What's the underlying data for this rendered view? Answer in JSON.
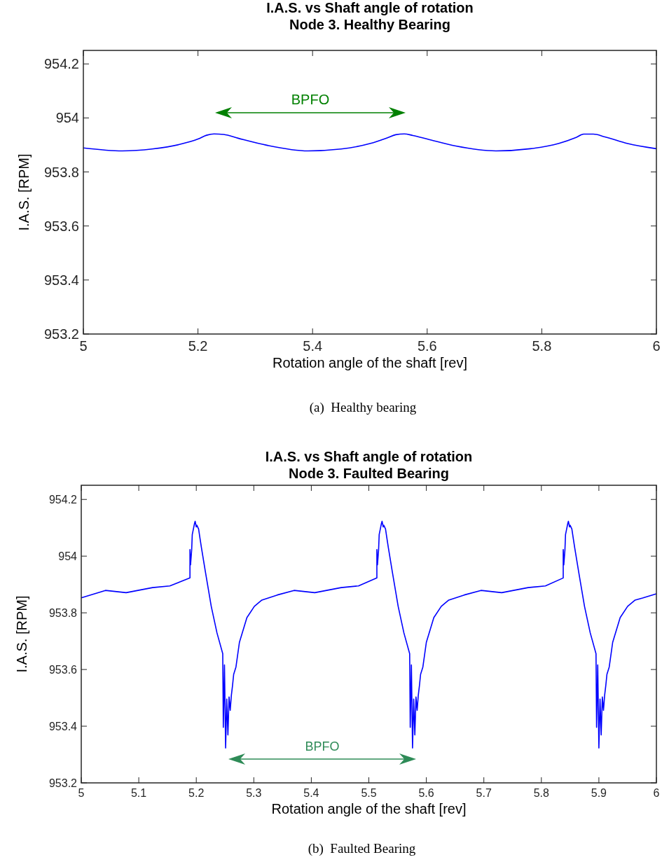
{
  "chart_data": [
    {
      "type": "line",
      "title": "I.A.S. vs Shaft angle of rotation",
      "subtitle": "Node 3. Healthy Bearing",
      "xlabel": "Rotation angle of the shaft [rev]",
      "ylabel": "I.A.S. [RPM]",
      "xlim": [
        5,
        6
      ],
      "xticks": [
        5,
        5.2,
        5.4,
        5.6,
        5.8,
        6
      ],
      "ylim": [
        953.2,
        954.25
      ],
      "yticks": [
        953.2,
        953.4,
        953.6,
        953.8,
        954,
        954.2
      ],
      "series": [
        {
          "color": "#0000ff",
          "x": [
            5,
            5.068,
            5.12,
            5.17,
            5.2,
            5.215,
            5.228,
            5.245,
            5.27,
            5.32,
            5.392,
            5.45,
            5.5,
            5.53,
            5.545,
            5.56,
            5.575,
            5.6,
            5.65,
            5.72,
            5.78,
            5.83,
            5.86,
            5.873,
            5.89,
            5.91,
            5.95,
            6
          ],
          "values": [
            953.889,
            953.878,
            953.885,
            953.903,
            953.922,
            953.936,
            953.941,
            953.939,
            953.925,
            953.899,
            953.878,
            953.885,
            953.905,
            953.926,
            953.938,
            953.941,
            953.935,
            953.922,
            953.896,
            953.878,
            953.886,
            953.906,
            953.928,
            953.94,
            953.94,
            953.93,
            953.905,
            953.886
          ]
        }
      ],
      "annotations": [
        "BPFO",
        "(a)  Healthy bearing"
      ]
    },
    {
      "type": "line",
      "title": "I.A.S. vs Shaft angle of rotation",
      "subtitle": "Node 3. Faulted Bearing",
      "xlabel": "Rotation angle of the shaft [rev]",
      "ylabel": "I.A.S. [RPM]",
      "xlim": [
        5,
        6
      ],
      "xticks": [
        5,
        5.1,
        5.2,
        5.3,
        5.4,
        5.5,
        5.6,
        5.7,
        5.8,
        5.9,
        6
      ],
      "ylim": [
        953.2,
        954.25
      ],
      "yticks": [
        953.2,
        953.4,
        953.6,
        953.8,
        954,
        954.2
      ],
      "series": [
        {
          "color": "#0000ff",
          "x": [
            5,
            5.042,
            5.078,
            5.124,
            5.154,
            5.189,
            5.189,
            5.19,
            5.192,
            5.193,
            5.195,
            5.197,
            5.198,
            5.2,
            5.201,
            5.204,
            5.206,
            5.209,
            5.216,
            5.226,
            5.236,
            5.246,
            5.247,
            5.249,
            5.251,
            5.253,
            5.255,
            5.257,
            5.259,
            5.261,
            5.263,
            5.265,
            5.269,
            5.275,
            5.288,
            5.301,
            5.314,
            5.341,
            5.37,
            5.406,
            5.452,
            5.482,
            5.514,
            5.514,
            5.515,
            5.517,
            5.518,
            5.52,
            5.522,
            5.523,
            5.525,
            5.526,
            5.529,
            5.531,
            5.534,
            5.541,
            5.551,
            5.561,
            5.571,
            5.572,
            5.574,
            5.576,
            5.578,
            5.58,
            5.582,
            5.584,
            5.586,
            5.588,
            5.59,
            5.594,
            5.6,
            5.613,
            5.626,
            5.639,
            5.666,
            5.695,
            5.731,
            5.777,
            5.807,
            5.838,
            5.838,
            5.839,
            5.841,
            5.842,
            5.844,
            5.846,
            5.847,
            5.849,
            5.85,
            5.853,
            5.855,
            5.858,
            5.865,
            5.875,
            5.885,
            5.895,
            5.896,
            5.898,
            5.9,
            5.902,
            5.904,
            5.906,
            5.908,
            5.91,
            5.912,
            5.914,
            5.918,
            5.924,
            5.937,
            5.95,
            5.963,
            5.976,
            6
          ],
          "values": [
            953.853,
            953.879,
            953.871,
            953.889,
            953.895,
            953.923,
            954.023,
            953.969,
            954.023,
            954.076,
            954.096,
            954.116,
            954.123,
            954.103,
            954.109,
            954.096,
            954.069,
            954.029,
            953.943,
            953.823,
            953.729,
            953.656,
            953.396,
            953.616,
            953.323,
            953.496,
            953.369,
            953.503,
            953.456,
            953.509,
            953.543,
            953.583,
            953.609,
            953.696,
            953.783,
            953.823,
            953.845,
            953.863,
            953.879,
            953.871,
            953.889,
            953.895,
            953.923,
            954.023,
            953.969,
            954.023,
            954.076,
            954.096,
            954.116,
            954.123,
            954.103,
            954.109,
            954.096,
            954.069,
            954.029,
            953.943,
            953.823,
            953.729,
            953.656,
            953.396,
            953.616,
            953.323,
            953.496,
            953.369,
            953.503,
            953.456,
            953.509,
            953.543,
            953.583,
            953.609,
            953.696,
            953.783,
            953.823,
            953.845,
            953.863,
            953.879,
            953.871,
            953.889,
            953.895,
            953.923,
            954.023,
            953.969,
            954.023,
            954.076,
            954.096,
            954.116,
            954.123,
            954.103,
            954.109,
            954.096,
            954.069,
            954.029,
            953.943,
            953.823,
            953.729,
            953.656,
            953.396,
            953.616,
            953.323,
            953.496,
            953.369,
            953.503,
            953.456,
            953.509,
            953.543,
            953.583,
            953.609,
            953.696,
            953.783,
            953.823,
            953.845,
            953.852,
            953.867
          ]
        }
      ],
      "annotations": [
        "BPFO",
        "(b)  Faulted Bearing"
      ]
    }
  ]
}
